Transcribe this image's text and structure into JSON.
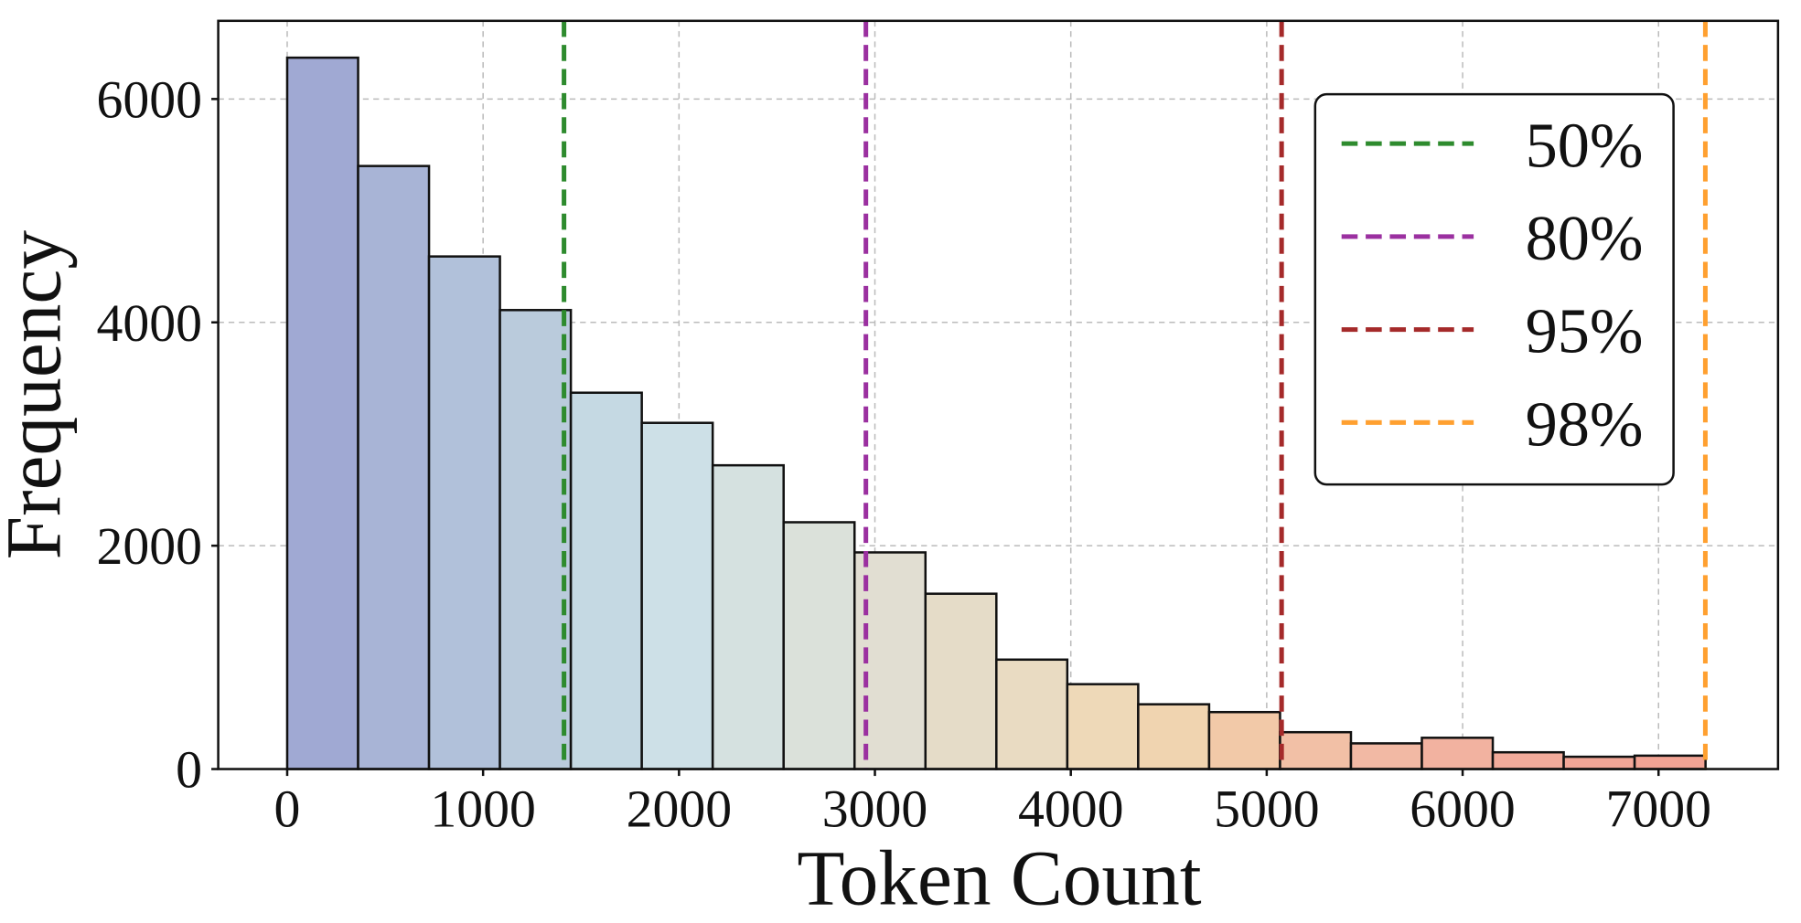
{
  "chart_data": {
    "type": "histogram",
    "x_label": "Token Count",
    "y_label": "Frequency",
    "bins": [
      0,
      362,
      724,
      1086,
      1448,
      1810,
      2172,
      2534,
      2896,
      3258,
      3620,
      3982,
      4344,
      4706,
      5068,
      5430,
      5792,
      6154,
      6516,
      6878,
      7240
    ],
    "values": [
      6370,
      5400,
      4590,
      4110,
      3370,
      3100,
      2720,
      2210,
      1940,
      1570,
      980,
      760,
      580,
      510,
      330,
      230,
      280,
      150,
      110,
      120
    ],
    "colors": [
      "#a0a9d3",
      "#a8b4d6",
      "#b1c1da",
      "#bacbdc",
      "#c5d9e3",
      "#cde0e7",
      "#d5e1e0",
      "#dbe1da",
      "#e1ded2",
      "#e5dcc8",
      "#e9dbc2",
      "#eed9b8",
      "#f0d4b0",
      "#f2c9a8",
      "#f2c0a6",
      "#f2b9a4",
      "#f2b2a0",
      "#f2ab9b",
      "#f2a697",
      "#f2a394"
    ],
    "vlines": [
      {
        "name": "50%",
        "value": 1413,
        "color": "#2e8b2e"
      },
      {
        "name": "80%",
        "value": 2954,
        "color": "#9b30a0"
      },
      {
        "name": "95%",
        "value": 5076,
        "color": "#a52a2a"
      },
      {
        "name": "98%",
        "value": 7239,
        "color": "#ffa030"
      }
    ],
    "xlim": [
      -352,
      7610
    ],
    "ylim": [
      0,
      6700
    ],
    "xticks": [
      0,
      1000,
      2000,
      3000,
      4000,
      5000,
      6000,
      7000
    ],
    "yticks": [
      0,
      2000,
      4000,
      6000
    ],
    "grid": true,
    "legend": "upper right"
  }
}
